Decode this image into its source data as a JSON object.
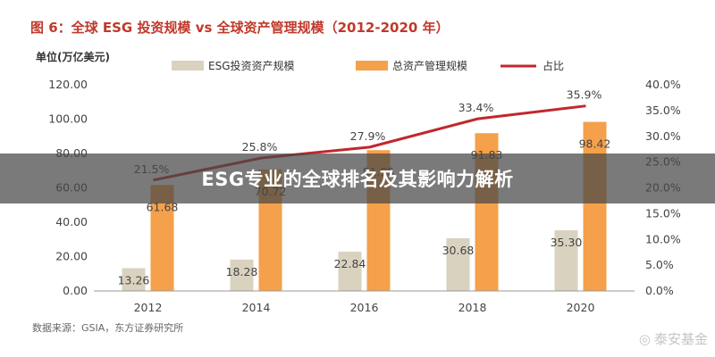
{
  "banner": {
    "text": "ESG专业的全球排名及其影响力解析"
  },
  "watermark": {
    "text": "泰安基金"
  },
  "chart_data": {
    "type": "bar",
    "title": "图 6：全球 ESG 投资规模 vs 全球资产管理规模（2012-2020 年）",
    "unit_label": "单位(万亿美元)",
    "source": "数据来源：GSIA，东方证券研究所",
    "categories": [
      "2012",
      "2014",
      "2016",
      "2018",
      "2020"
    ],
    "series": [
      {
        "name": "ESG投资资产规模",
        "type": "bar",
        "axis": "left",
        "color": "#d9d2bf",
        "values": [
          13.26,
          18.28,
          22.84,
          30.68,
          35.3
        ],
        "labels": [
          "13.26",
          "18.28",
          "22.84",
          "30.68",
          "35.30"
        ]
      },
      {
        "name": "总资产管理规模",
        "type": "bar",
        "axis": "left",
        "color": "#f5a04a",
        "values": [
          61.68,
          70.72,
          81.95,
          91.83,
          98.42
        ],
        "labels": [
          "61.68",
          "70.72",
          "81.95",
          "91.83",
          "98.42"
        ]
      },
      {
        "name": "占比",
        "type": "line",
        "axis": "right",
        "color": "#c0282d",
        "values": [
          21.5,
          25.8,
          27.9,
          33.4,
          35.9
        ],
        "labels": [
          "21.5%",
          "25.8%",
          "27.9%",
          "33.4%",
          "35.9%"
        ]
      }
    ],
    "ylim": [
      0,
      120
    ],
    "yticks": [
      "0.00",
      "20.00",
      "40.00",
      "60.00",
      "80.00",
      "100.00",
      "120.00"
    ],
    "y2lim": [
      0,
      40
    ],
    "y2ticks": [
      "0.0%",
      "5.0%",
      "10.0%",
      "15.0%",
      "20.0%",
      "25.0%",
      "30.0%",
      "35.0%",
      "40.0%"
    ],
    "legend_position": "top",
    "grid": false
  }
}
